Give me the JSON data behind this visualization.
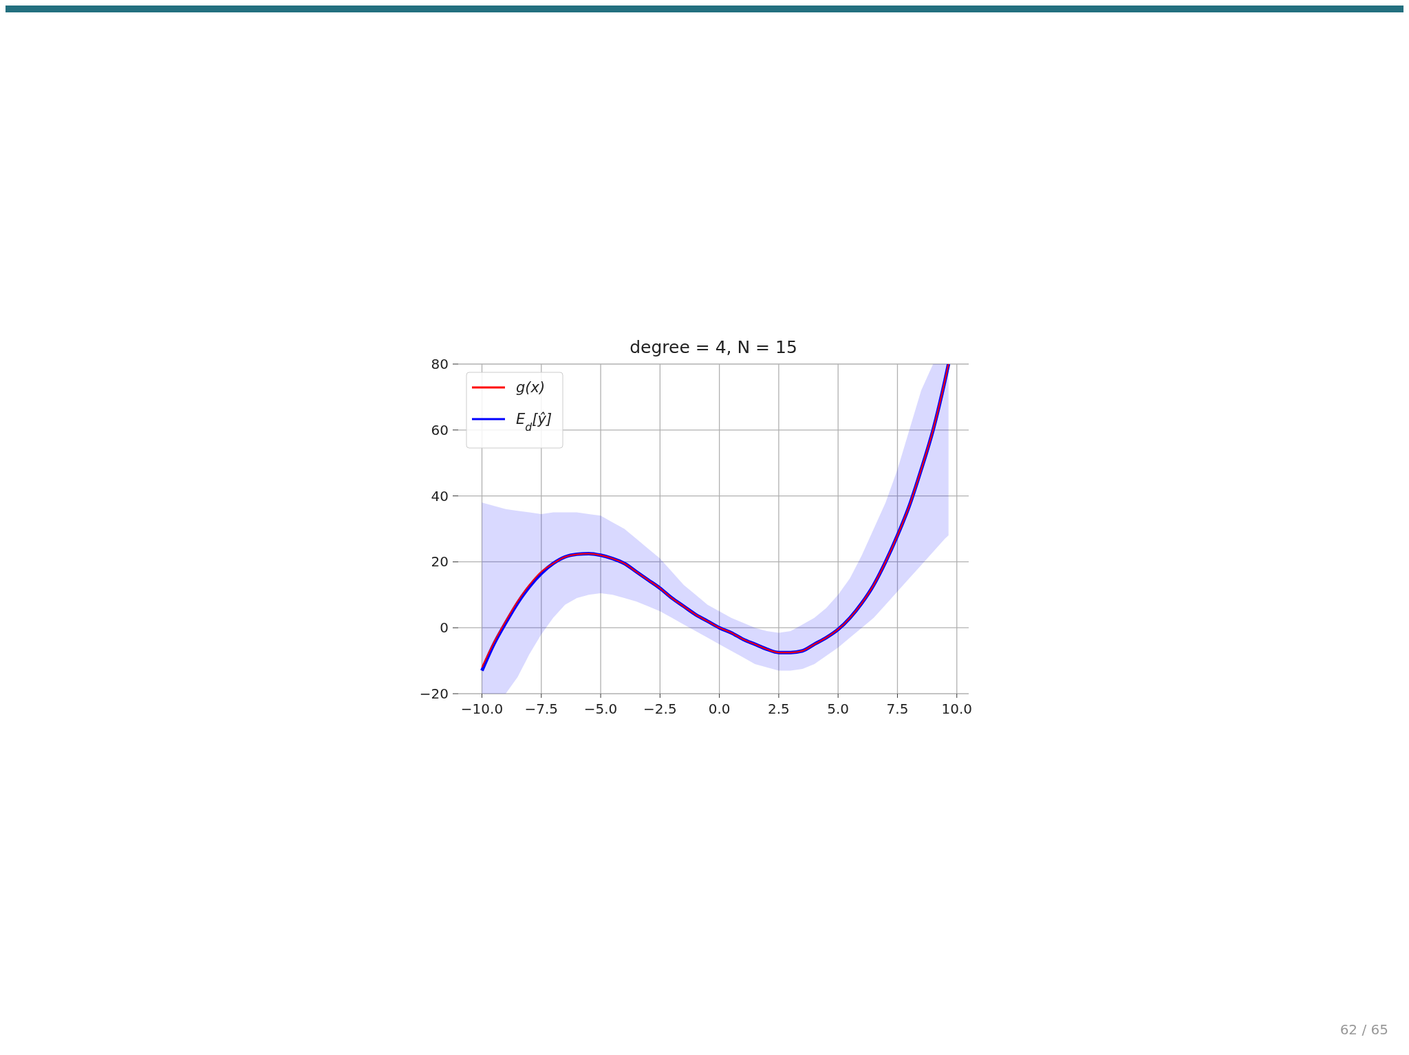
{
  "chart_data": {
    "type": "line",
    "title": "degree = 4, N = 15",
    "x": [
      -10,
      -9.5,
      -9,
      -8.5,
      -8,
      -7.5,
      -7,
      -6.5,
      -6,
      -5.5,
      -5,
      -4.5,
      -4,
      -3.5,
      -3,
      -2.5,
      -2,
      -1.5,
      -1,
      -0.5,
      0,
      0.5,
      1,
      1.5,
      2,
      2.5,
      3,
      3.5,
      4,
      4.5,
      5,
      5.5,
      6,
      6.5,
      7,
      7.5,
      8,
      8.5,
      9,
      9.5,
      9.65
    ],
    "series": [
      {
        "name": "g(x)",
        "color": "#ff0000",
        "values": [
          -12,
          -4.5,
          2,
          8,
          13,
          17,
          19.5,
          21.5,
          22.3,
          22.5,
          22,
          21,
          19.5,
          17,
          14.5,
          12,
          9,
          6.5,
          4,
          2,
          0,
          -1.5,
          -3.5,
          -5,
          -6.5,
          -7.5,
          -7.5,
          -7,
          -5,
          -3,
          -0.5,
          3,
          7.5,
          13,
          20,
          28,
          37,
          48,
          60,
          75,
          80
        ]
      },
      {
        "name": "E$_{d}$[ŷ]",
        "color": "#0000ff",
        "values": [
          -13,
          -5,
          1.5,
          7.5,
          12.5,
          16.5,
          19.5,
          21.5,
          22.3,
          22.5,
          22,
          21,
          19.5,
          17,
          14.5,
          12,
          9,
          6.5,
          4,
          2,
          0,
          -1.5,
          -3.5,
          -5,
          -6.5,
          -7.5,
          -7.5,
          -7,
          -5,
          -3,
          -0.5,
          3,
          7.5,
          13,
          20,
          28,
          37,
          48,
          60,
          75,
          80
        ],
        "lower": [
          -20,
          -20,
          -20,
          -15,
          -8,
          -2,
          3,
          7,
          9,
          10,
          10.5,
          10,
          9,
          8,
          6.5,
          5,
          3,
          1,
          -1,
          -3,
          -5,
          -7,
          -9,
          -11,
          -12,
          -13,
          -13,
          -12.5,
          -11,
          -8.5,
          -6,
          -3,
          0,
          3,
          7,
          11,
          15,
          19,
          23,
          27,
          28
        ],
        "upper": [
          38,
          37,
          36,
          35.5,
          35,
          34.5,
          35,
          35,
          35,
          34.5,
          34,
          32,
          30,
          27,
          24,
          21,
          17,
          13,
          10,
          7,
          5,
          3,
          1.5,
          0,
          -1,
          -1.5,
          -1,
          1,
          3,
          6,
          10,
          15,
          22,
          30,
          38,
          48,
          60,
          72,
          80,
          80,
          80
        ]
      }
    ],
    "xlim": [
      -11,
      10.5
    ],
    "ylim": [
      -20,
      80
    ],
    "xticks": [
      {
        "value": -10,
        "label": "−10.0"
      },
      {
        "value": -7.5,
        "label": "−7.5"
      },
      {
        "value": -5,
        "label": "−5.0"
      },
      {
        "value": -2.5,
        "label": "−2.5"
      },
      {
        "value": 0,
        "label": "0.0"
      },
      {
        "value": 2.5,
        "label": "2.5"
      },
      {
        "value": 5,
        "label": "5.0"
      },
      {
        "value": 7.5,
        "label": "7.5"
      },
      {
        "value": 10,
        "label": "10.0"
      }
    ],
    "yticks": [
      {
        "value": -20,
        "label": "−20"
      },
      0,
      20,
      40,
      60,
      80
    ],
    "grid": true,
    "legend": "top left",
    "line_style": "solid",
    "marker": "none",
    "annotations": [
      "62 / 65"
    ]
  }
}
